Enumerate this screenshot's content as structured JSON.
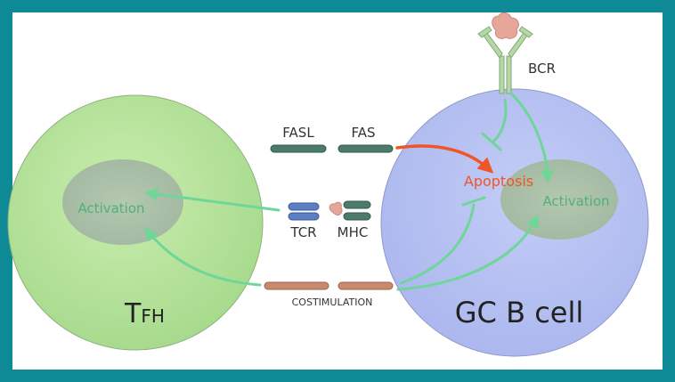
{
  "tfh_label_main": "T",
  "tfh_label_sub": "FH",
  "gcb_label": "GC B cell",
  "tfh_activation": "Activation",
  "gcb_activation": "Activation",
  "apoptosis": "Apoptosis",
  "fasl": "FASL",
  "fas": "FAS",
  "tcr": "TCR",
  "mhc": "MHC",
  "bcr": "BCR",
  "costimulation": "COSTIMULATION",
  "colors": {
    "frame": "#0e8a96",
    "tfh_cell": "#b4e19a",
    "gcb_cell": "#b9c3f2",
    "nucleus": "#a9bfa6",
    "activation_arrow": "#6fd69a",
    "apoptosis_arrow": "#f0552a",
    "fas_bar": "#4d7b6a",
    "tcr_bar": "#5c7fc4",
    "costim_bar": "#c9896d"
  }
}
